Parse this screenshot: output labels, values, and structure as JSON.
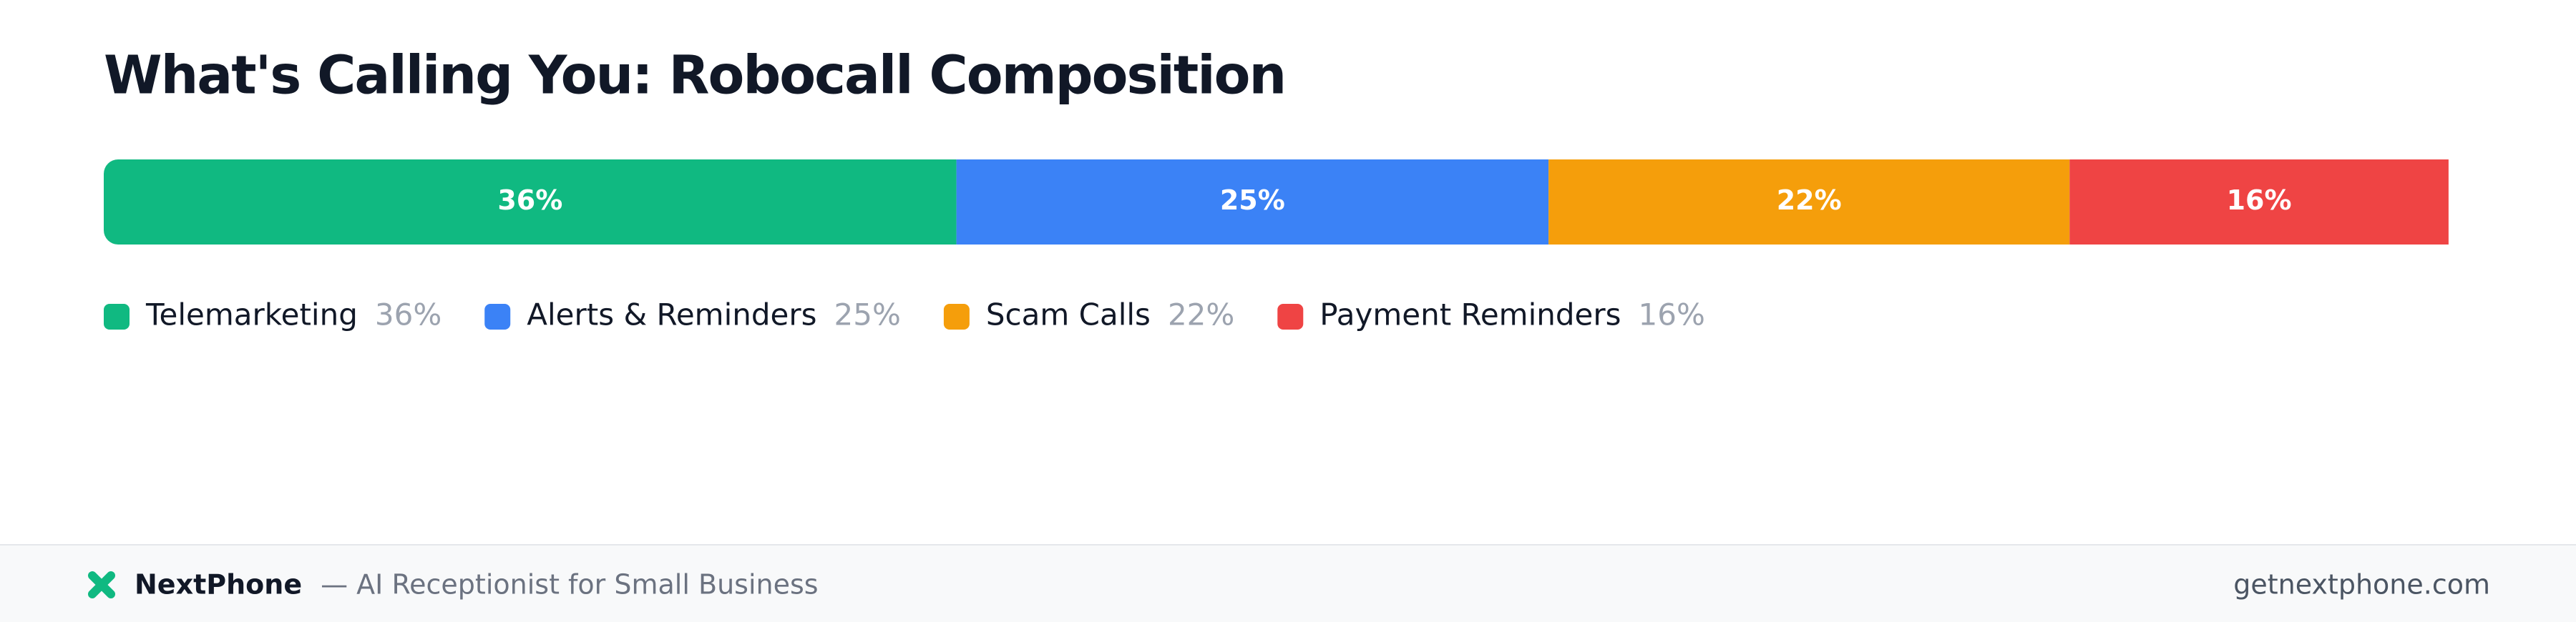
{
  "chart_data": {
    "type": "stacked-bar-100",
    "title": "What's Calling You: Robocall Composition",
    "series": [
      {
        "name": "Telemarketing",
        "color": "#10b981",
        "values": [
          36
        ],
        "value_labels": [
          "36%"
        ]
      },
      {
        "name": "Alerts & Reminders",
        "color": "#3b82f6",
        "values": [
          25
        ],
        "value_labels": [
          "25%"
        ]
      },
      {
        "name": "Scam Calls",
        "color": "#f59e0b",
        "values": [
          22
        ],
        "value_labels": [
          "22%"
        ]
      },
      {
        "name": "Payment Reminders",
        "color": "#ef4444",
        "values": [
          16
        ],
        "value_labels": [
          "16%"
        ]
      }
    ]
  },
  "footer": {
    "brand": "NextPhone",
    "tagline": "— AI Receptionist for Small Business",
    "url": "getnextphone.com"
  }
}
